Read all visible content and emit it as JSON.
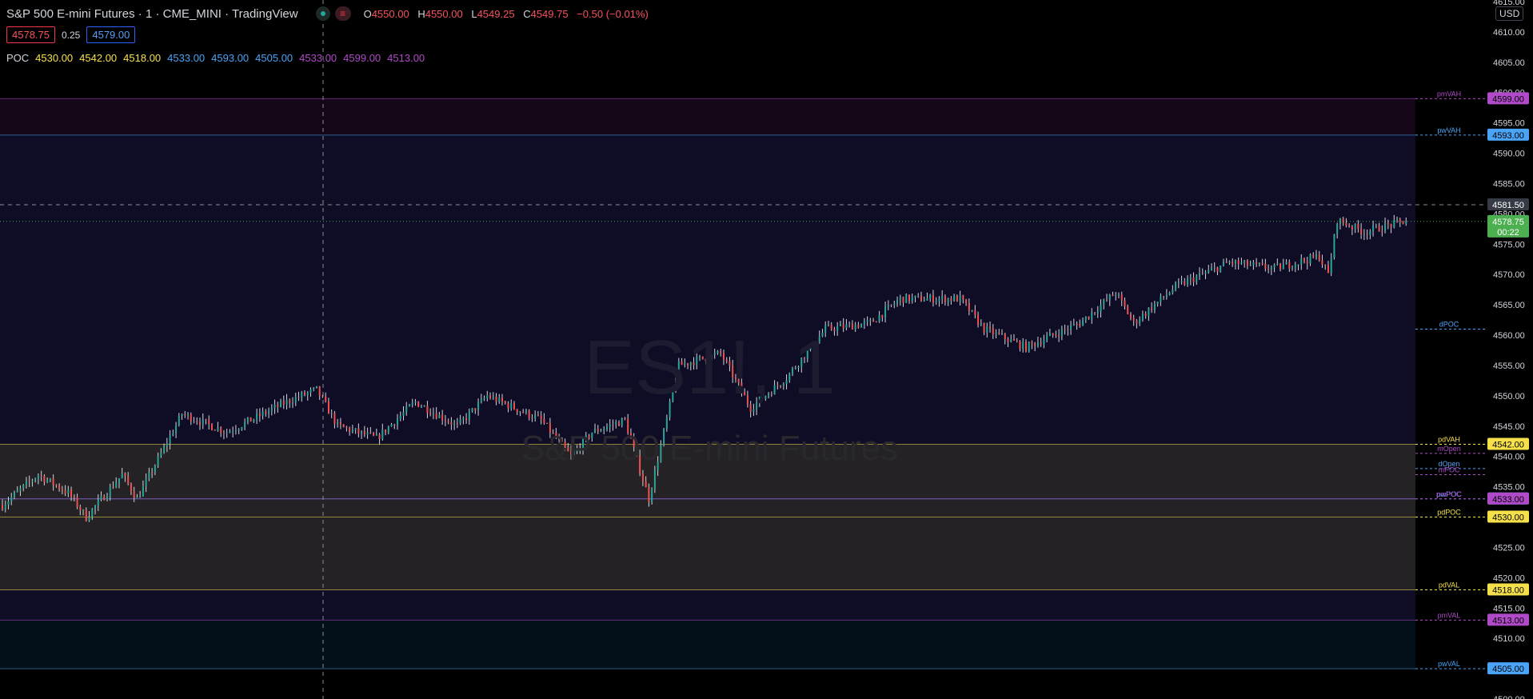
{
  "header": {
    "title": "S&P 500 E-mini Futures · 1 · CME_MINI · TradingView",
    "market_status": "≡",
    "ohlc": {
      "o_label": "O",
      "o": "4550.00",
      "h_label": "H",
      "h": "4550.00",
      "l_label": "L",
      "l": "4549.25",
      "c_label": "C",
      "c": "4549.75",
      "change": "−0.50 (−0.01%)"
    },
    "bid": "4578.75",
    "spread": "0.25",
    "ask": "4579.00",
    "currency": "USD",
    "poc_label": "POC",
    "poc_values": [
      {
        "v": "4530.00",
        "color": "#f5e04a"
      },
      {
        "v": "4542.00",
        "color": "#f5e04a"
      },
      {
        "v": "4518.00",
        "color": "#f5e04a"
      },
      {
        "v": "4533.00",
        "color": "#4aa3f5"
      },
      {
        "v": "4593.00",
        "color": "#4aa3f5"
      },
      {
        "v": "4505.00",
        "color": "#4aa3f5"
      },
      {
        "v": "4533.00",
        "color": "#b04ac8"
      },
      {
        "v": "4599.00",
        "color": "#b04ac8"
      },
      {
        "v": "4513.00",
        "color": "#b04ac8"
      }
    ]
  },
  "watermark": {
    "symbol": "ES1!, 1",
    "name": "S&P 500 E-mini Futures"
  },
  "chart_data": {
    "type": "candlestick",
    "ylim": [
      4500,
      4615
    ],
    "ytick_values": [
      4500,
      4505,
      4510,
      4515,
      4520,
      4525,
      4530,
      4535,
      4540,
      4545,
      4550,
      4555,
      4560,
      4565,
      4570,
      4575,
      4580,
      4585,
      4590,
      4595,
      4600,
      4605,
      4610,
      4615
    ],
    "ytick_labels": [
      "4500.00",
      "4505.00",
      "4510.00",
      "4515.00",
      "4520.00",
      "4525.00",
      "4530.00",
      "4535.00",
      "4540.00",
      "4545.00",
      "4550.00",
      "4555.00",
      "4560.00",
      "4565.00",
      "4570.00",
      "4575.00",
      "4580.00",
      "4585.00",
      "4590.00",
      "4595.00",
      "4600.00",
      "4605.00",
      "4610.00",
      "4615.00"
    ],
    "bar_count": 470,
    "price_path": [
      {
        "i": 0,
        "p": 4532
      },
      {
        "i": 12,
        "p": 4537
      },
      {
        "i": 22,
        "p": 4534
      },
      {
        "i": 28,
        "p": 4530
      },
      {
        "i": 40,
        "p": 4537
      },
      {
        "i": 45,
        "p": 4533
      },
      {
        "i": 60,
        "p": 4547
      },
      {
        "i": 75,
        "p": 4544
      },
      {
        "i": 95,
        "p": 4549
      },
      {
        "i": 105,
        "p": 4551
      },
      {
        "i": 112,
        "p": 4545
      },
      {
        "i": 125,
        "p": 4543
      },
      {
        "i": 138,
        "p": 4549
      },
      {
        "i": 152,
        "p": 4545
      },
      {
        "i": 162,
        "p": 4550
      },
      {
        "i": 180,
        "p": 4546
      },
      {
        "i": 190,
        "p": 4540
      },
      {
        "i": 197,
        "p": 4544
      },
      {
        "i": 208,
        "p": 4546
      },
      {
        "i": 216,
        "p": 4533
      },
      {
        "i": 226,
        "p": 4555
      },
      {
        "i": 240,
        "p": 4557
      },
      {
        "i": 250,
        "p": 4548
      },
      {
        "i": 262,
        "p": 4553
      },
      {
        "i": 275,
        "p": 4561
      },
      {
        "i": 290,
        "p": 4562
      },
      {
        "i": 300,
        "p": 4566
      },
      {
        "i": 320,
        "p": 4566
      },
      {
        "i": 328,
        "p": 4561
      },
      {
        "i": 342,
        "p": 4558
      },
      {
        "i": 360,
        "p": 4562
      },
      {
        "i": 372,
        "p": 4567
      },
      {
        "i": 378,
        "p": 4562
      },
      {
        "i": 392,
        "p": 4568
      },
      {
        "i": 410,
        "p": 4572
      },
      {
        "i": 425,
        "p": 4571
      },
      {
        "i": 440,
        "p": 4573
      },
      {
        "i": 443,
        "p": 4570
      },
      {
        "i": 446,
        "p": 4579
      },
      {
        "i": 455,
        "p": 4577
      },
      {
        "i": 470,
        "p": 4579
      }
    ],
    "current_price": "4578.75",
    "current_price_sub": "00:22",
    "crosshair_price": "4581.50",
    "levels": [
      {
        "name": "pmVAH",
        "price": 4599,
        "label": "4599.00",
        "color": "#b04ac8"
      },
      {
        "name": "pwVAH",
        "price": 4593,
        "label": "4593.00",
        "color": "#4aa3f5"
      },
      {
        "name": "dPOC",
        "price": 4561,
        "label": "",
        "color": "#4aa3f5"
      },
      {
        "name": "pdVAH",
        "price": 4542,
        "label": "4542.00",
        "color": "#f5e04a"
      },
      {
        "name": "mOpen",
        "price": 4540.5,
        "label": "",
        "color": "#b04ac8"
      },
      {
        "name": "dOpen",
        "price": 4538,
        "label": "",
        "color": "#4aa3f5"
      },
      {
        "name": "mPOC",
        "price": 4537,
        "label": "",
        "color": "#b04ac8"
      },
      {
        "name": "pwPOC",
        "price": 4533,
        "label": "4533.00",
        "color": "#4aa3f5"
      },
      {
        "name": "pmPOC",
        "price": 4533,
        "label": "4533.00",
        "color": "#b04ac8"
      },
      {
        "name": "pdPOC",
        "price": 4530,
        "label": "4530.00",
        "color": "#f5e04a"
      },
      {
        "name": "pdVAL",
        "price": 4518,
        "label": "4518.00",
        "color": "#f5e04a"
      },
      {
        "name": "pmVAL",
        "price": 4513,
        "label": "4513.00",
        "color": "#b04ac8"
      },
      {
        "name": "pwVAL",
        "price": 4505,
        "label": "4505.00",
        "color": "#4aa3f5"
      }
    ],
    "colors": {
      "up": "#26a69a",
      "down": "#ef5350",
      "wick": "#d1d4dc",
      "bg": "#000000",
      "axis_text": "#d1d4dc",
      "last_price": "#4caf50"
    }
  }
}
